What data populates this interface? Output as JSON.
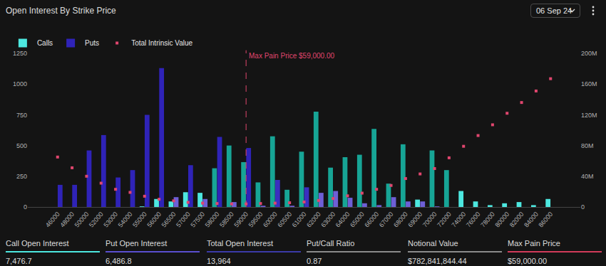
{
  "header": {
    "date": "06 Sep 24"
  },
  "chart_data": {
    "type": "bar",
    "title": "Open Interest By Strike Price",
    "categories": [
      "46000",
      "48000",
      "50000",
      "52000",
      "53000",
      "54000",
      "55000",
      "56000",
      "56500",
      "57000",
      "57500",
      "58000",
      "58500",
      "59000",
      "59500",
      "60000",
      "60500",
      "61000",
      "62000",
      "63000",
      "64000",
      "65000",
      "66000",
      "67000",
      "68000",
      "69000",
      "70000",
      "72000",
      "74000",
      "76000",
      "78000",
      "80000",
      "82000",
      "84000",
      "86000"
    ],
    "series": [
      {
        "name": "Calls",
        "type": "bar",
        "colors": [
          "#4de8e0",
          "#4de8e0",
          "#4de8e0",
          "#4de8e0",
          "#4de8e0",
          "#4de8e0",
          "#4de8e0",
          "#4de8e0",
          "#4de8e0",
          "#4de8e0",
          "#4de8e0",
          "#17a596",
          "#17a596",
          "#17a596",
          "#17a596",
          "#17a596",
          "#17a596",
          "#17a596",
          "#17a596",
          "#17a596",
          "#17a596",
          "#17a596",
          "#17a596",
          "#17a596",
          "#17a596",
          "#4de8e0",
          "#17a596",
          "#17a596",
          "#4de8e0",
          "#4de8e0",
          "#4de8e0",
          "#4de8e0",
          "#4de8e0",
          "#4de8e0",
          "#4de8e0"
        ],
        "values": [
          0,
          0,
          0,
          0,
          0,
          0,
          5,
          65,
          45,
          120,
          115,
          315,
          500,
          365,
          200,
          575,
          140,
          450,
          775,
          320,
          405,
          425,
          635,
          190,
          510,
          60,
          460,
          300,
          130,
          45,
          15,
          30,
          40,
          15,
          65
        ]
      },
      {
        "name": "Puts",
        "type": "bar",
        "colors": [
          "#2f23b8",
          "#2f23b8",
          "#2f23b8",
          "#2f23b8",
          "#2f23b8",
          "#2f23b8",
          "#2f23b8",
          "#2f23b8",
          "#6e5fd6",
          "#2f23b8",
          "#6e5fd6",
          "#2f23b8",
          "#6e5fd6",
          "#2f23b8",
          "#6e5fd6",
          "#3a2fc0",
          "#6e5fd6",
          "#3a2fc0",
          "#6e5fd6",
          "#6e5fd6",
          "#6e5fd6",
          "#6e5fd6",
          "#6e5fd6",
          "#6e5fd6",
          "#6e5fd6",
          "#6e5fd6",
          "#6e5fd6",
          "#6e5fd6",
          "#6e5fd6",
          "#6e5fd6",
          "#6e5fd6",
          "#6e5fd6",
          "#6e5fd6",
          "#6e5fd6",
          "#6e5fd6"
        ],
        "values": [
          180,
          180,
          460,
          585,
          240,
          300,
          750,
          1130,
          80,
          340,
          65,
          570,
          40,
          480,
          10,
          220,
          10,
          160,
          115,
          130,
          75,
          30,
          15,
          80,
          45,
          45,
          5,
          0,
          0,
          0,
          0,
          0,
          0,
          0,
          0
        ]
      },
      {
        "name": "Total Intrinsic Value",
        "type": "scatter",
        "axis": "y2",
        "marker": "square",
        "color": "#e0466e",
        "values": [
          65000000,
          51000000,
          40000000,
          31000000,
          23000000,
          19000000,
          14000000,
          10000000,
          8000000,
          6000000,
          5000000,
          4500000,
          4000000,
          4000000,
          4500000,
          5000000,
          5500000,
          6500000,
          8500000,
          11000000,
          14500000,
          18000000,
          23000000,
          28000000,
          37000000,
          43000000,
          50000000,
          64000000,
          79000000,
          93000000,
          107000000,
          122000000,
          136000000,
          151000000,
          167000000
        ]
      }
    ],
    "ylim": [
      0,
      1250
    ],
    "yticks": [
      0,
      250,
      500,
      750,
      1000,
      1250
    ],
    "y2lim": [
      0,
      200000000
    ],
    "y2ticks": [
      0,
      {
        "value": 40000000,
        "label": "40M"
      },
      {
        "value": 80000000,
        "label": "80M"
      },
      {
        "value": 120000000,
        "label": "120M"
      },
      {
        "value": 160000000,
        "label": "160M"
      },
      {
        "value": 200000000,
        "label": "200M"
      }
    ],
    "grid": false,
    "legend": "top left",
    "annotations": [
      {
        "text": "Max Pain Price $59,000.00",
        "category": "59000",
        "line_style": "dashed",
        "color": "#e0466e"
      }
    ]
  },
  "footer": {
    "stats": [
      {
        "label": "Call Open Interest",
        "value": "7,476.7",
        "color": "#4de8e0"
      },
      {
        "label": "Put Open Interest",
        "value": "6,486.8",
        "color": "#5a4fd0"
      },
      {
        "label": "Total Open Interest",
        "value": "13,964",
        "color": "#3b3aa8"
      },
      {
        "label": "Put/Call Ratio",
        "value": "0.87",
        "color": "#8a8a8a"
      },
      {
        "label": "Notional Value",
        "value": "$782,841,844.44",
        "color": "#8a8a8a"
      },
      {
        "label": "Max Pain Price",
        "value": "$59,000.00",
        "color": "#d23b5a"
      }
    ]
  }
}
